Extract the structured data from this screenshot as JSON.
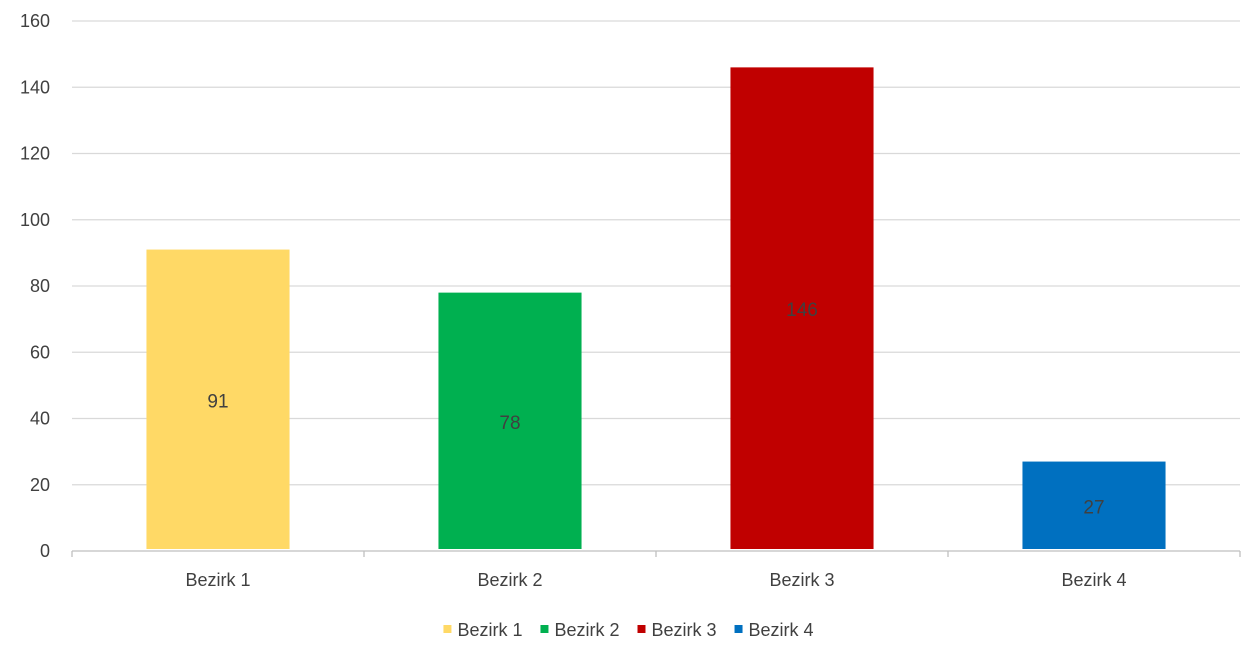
{
  "chart_data": {
    "type": "bar",
    "title": "",
    "xlabel": "",
    "ylabel": "",
    "categories": [
      "Bezirk 1",
      "Bezirk 2",
      "Bezirk 3",
      "Bezirk 4"
    ],
    "values": [
      91,
      78,
      146,
      27
    ],
    "data_labels": [
      "91",
      "78",
      "146",
      "27"
    ],
    "colors": [
      "#FFD966",
      "#00B050",
      "#C00000",
      "#0070C0"
    ],
    "ylim": [
      0,
      160
    ],
    "yticks": [
      0,
      20,
      40,
      60,
      80,
      100,
      120,
      140,
      160
    ],
    "grid": true,
    "legend": {
      "position": "bottom",
      "entries": [
        "Bezirk 1",
        "Bezirk 2",
        "Bezirk 3",
        "Bezirk 4"
      ]
    }
  }
}
